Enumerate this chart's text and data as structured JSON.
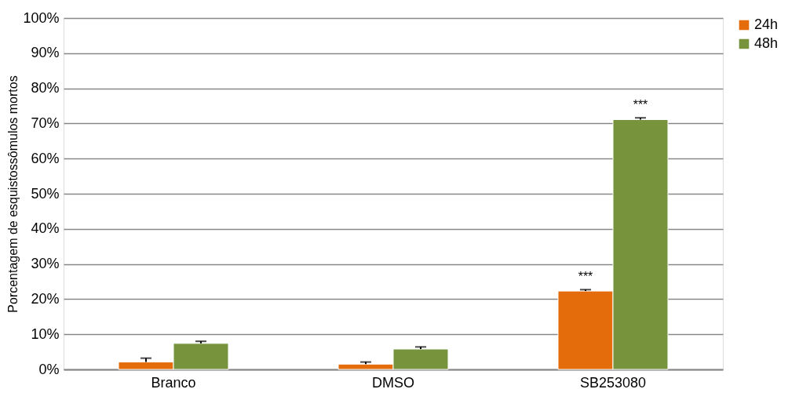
{
  "chart_data": {
    "type": "bar",
    "ylabel": "Porcentagem de esquistossômulos mortos",
    "categories": [
      "Branco",
      "DMSO",
      "SB253080"
    ],
    "series": [
      {
        "name": "24h",
        "color": "#e46c0a",
        "values": [
          2.1,
          1.5,
          22.3
        ],
        "errors": [
          1.1,
          0.6,
          0.4
        ]
      },
      {
        "name": "48h",
        "color": "#77933c",
        "values": [
          7.4,
          5.8,
          71.1
        ],
        "errors": [
          0.6,
          0.6,
          0.5
        ]
      }
    ],
    "ylim": [
      0,
      100
    ],
    "yticks": [
      {
        "value": 0,
        "label": "0%"
      },
      {
        "value": 10,
        "label": "10%"
      },
      {
        "value": 20,
        "label": "20%"
      },
      {
        "value": 30,
        "label": "30%"
      },
      {
        "value": 40,
        "label": "40%"
      },
      {
        "value": 50,
        "label": "50%"
      },
      {
        "value": 60,
        "label": "60%"
      },
      {
        "value": 70,
        "label": "70%"
      },
      {
        "value": 80,
        "label": "80%"
      },
      {
        "value": 90,
        "label": "90%"
      },
      {
        "value": 100,
        "label": "100%"
      }
    ],
    "annotations": [
      {
        "text": "***",
        "x": "SB253080",
        "y": 22.7
      },
      {
        "text": "***",
        "x": "SB253080",
        "y": 71.6
      }
    ],
    "grid": "y",
    "legend": "right"
  }
}
